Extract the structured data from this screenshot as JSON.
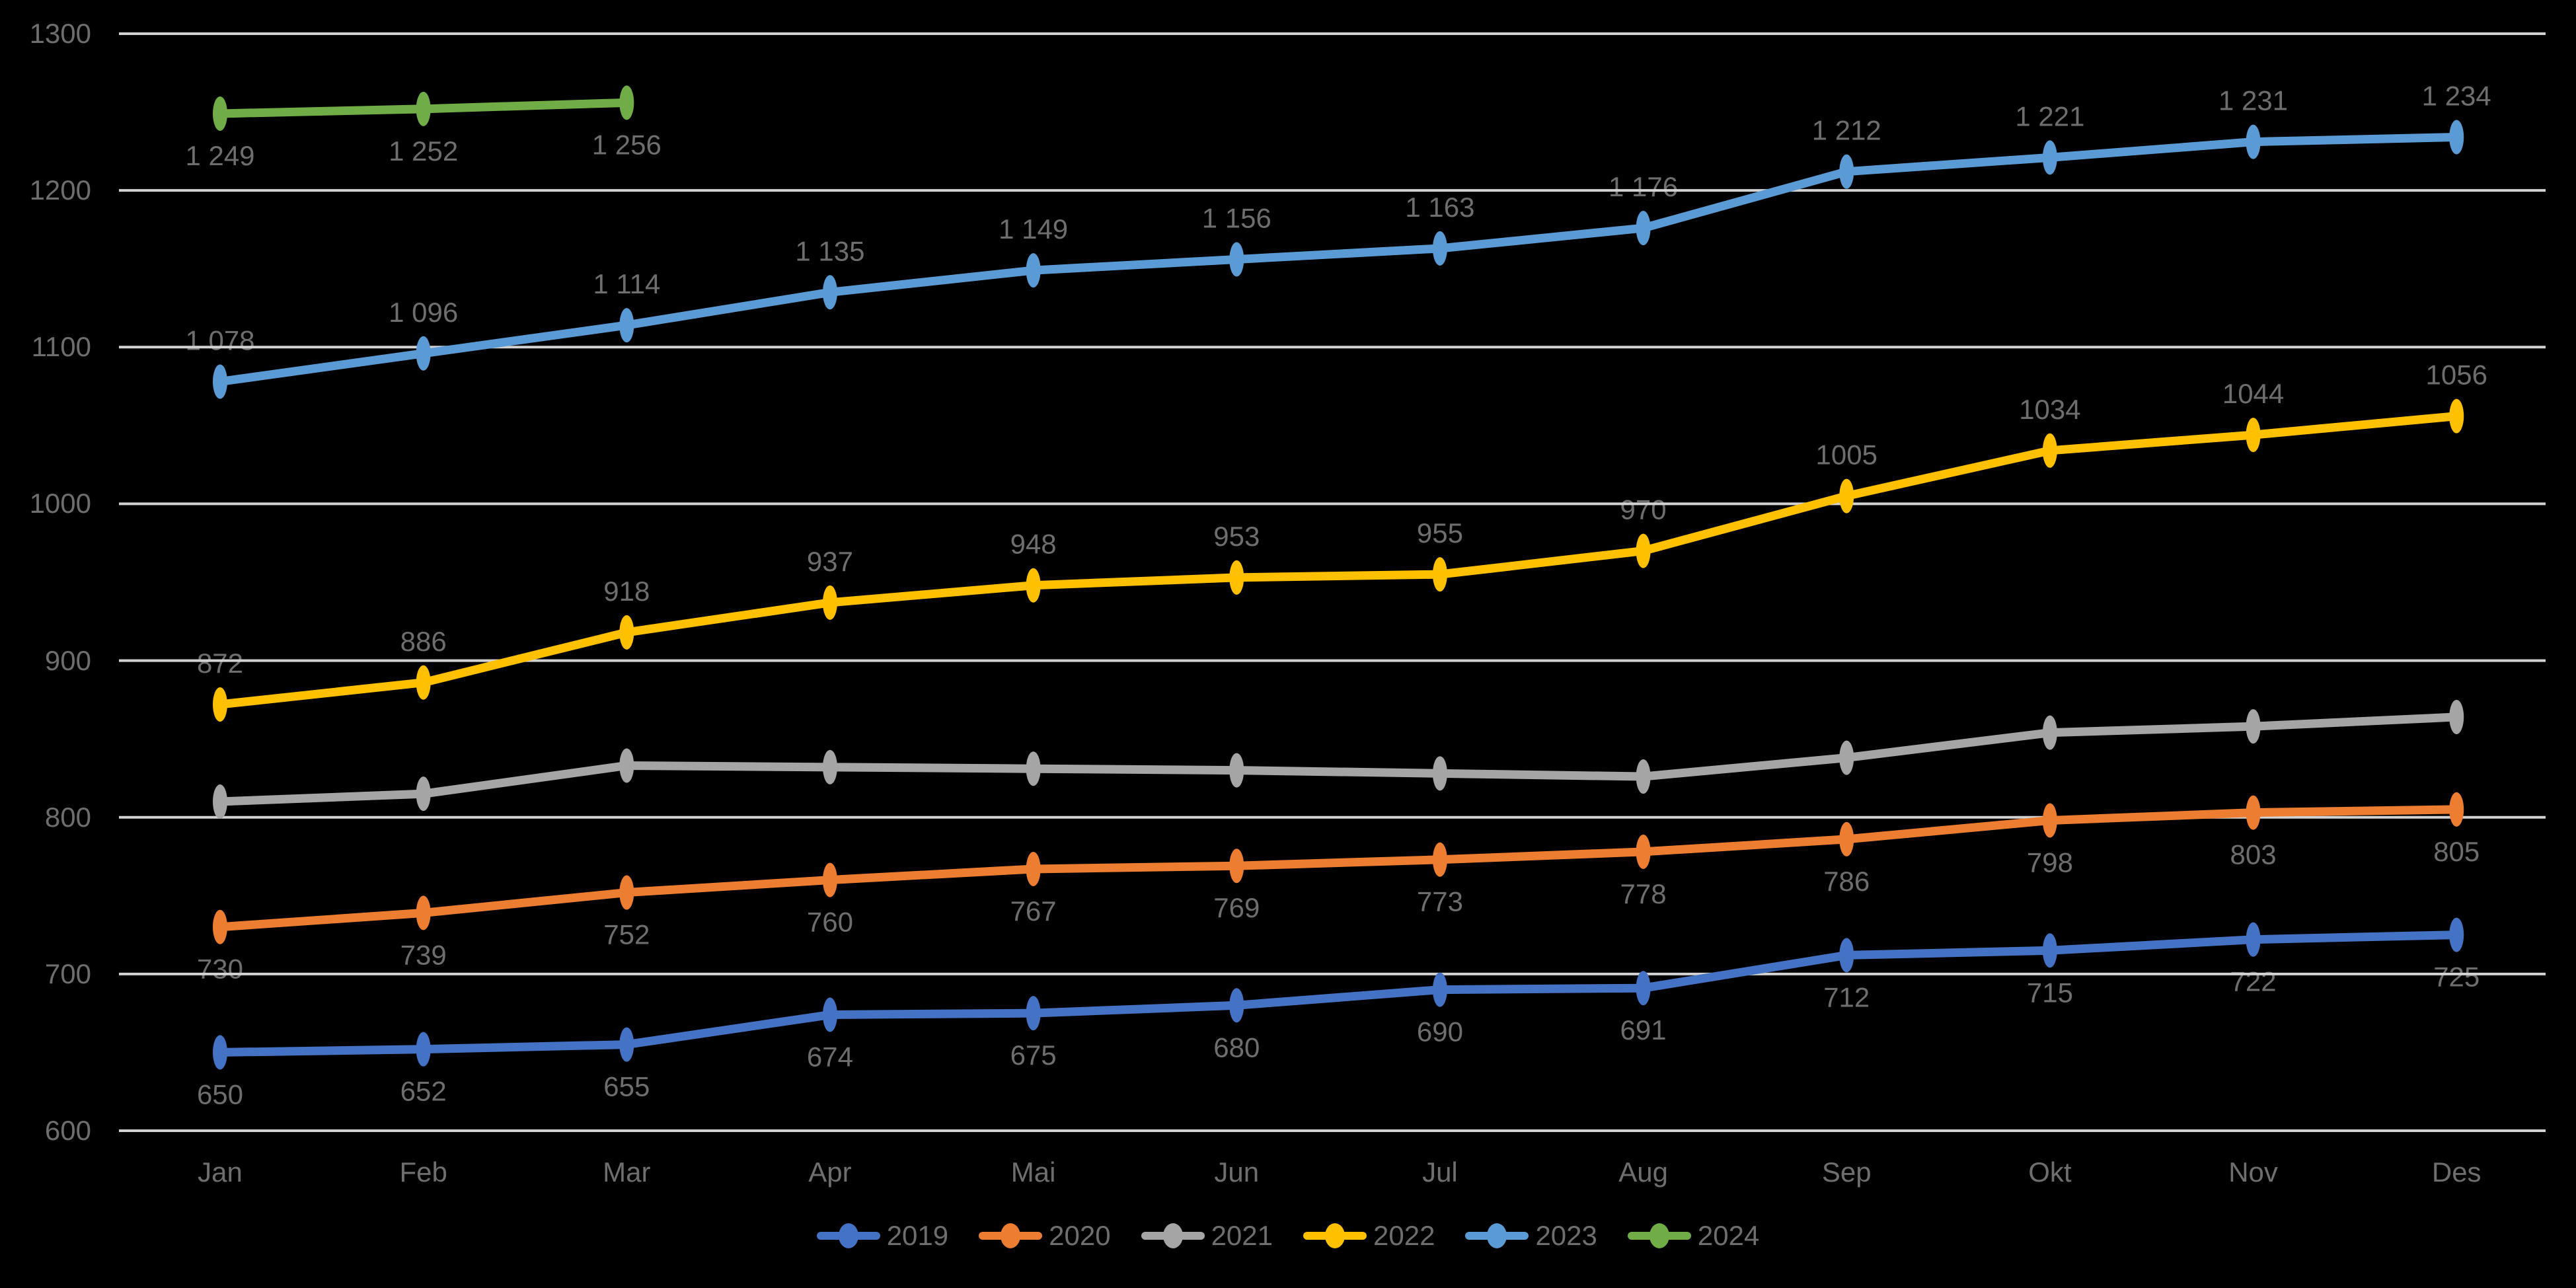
{
  "chart_data": {
    "type": "line",
    "title": "",
    "categories": [
      "Jan",
      "Feb",
      "Mar",
      "Apr",
      "Mai",
      "Jun",
      "Jul",
      "Aug",
      "Sep",
      "Okt",
      "Nov",
      "Des"
    ],
    "y_axis": {
      "min": 600,
      "max": 1300,
      "step": 100,
      "ticks": [
        "1300",
        "1200",
        "1100",
        "1000",
        "900",
        "800",
        "700",
        "600"
      ]
    },
    "grid": true,
    "gridline_color": "#D2D2D2",
    "background": "#000000",
    "text_color": "#6E6E6E",
    "legend_position": "bottom",
    "series": [
      {
        "name": "2019",
        "color": "#4472C4",
        "label_position": "below",
        "values": [
          650,
          652,
          655,
          674,
          675,
          680,
          690,
          691,
          712,
          715,
          722,
          725
        ],
        "labels": [
          "650",
          "652",
          "655",
          "674",
          "675",
          "680",
          "690",
          "691",
          "712",
          "715",
          "722",
          "725"
        ]
      },
      {
        "name": "2020",
        "color": "#ED7D31",
        "label_position": "below",
        "values": [
          730,
          739,
          752,
          760,
          767,
          769,
          773,
          778,
          786,
          798,
          803,
          805
        ],
        "labels": [
          "730",
          "739",
          "752",
          "760",
          "767",
          "769",
          "773",
          "778",
          "786",
          "798",
          "803",
          "805"
        ]
      },
      {
        "name": "2021",
        "color": "#A5A5A5",
        "label_position": "none",
        "values": [
          810,
          815,
          833,
          832,
          831,
          830,
          828,
          826,
          838,
          854,
          858,
          864
        ],
        "labels": []
      },
      {
        "name": "2022",
        "color": "#FFC000",
        "label_position": "above",
        "values": [
          872,
          886,
          918,
          937,
          948,
          953,
          955,
          970,
          1005,
          1034,
          1044,
          1056
        ],
        "labels": [
          "872",
          "886",
          "918",
          "937",
          "948",
          "953",
          "955",
          "970",
          "1005",
          "1034",
          "1044",
          "1056"
        ]
      },
      {
        "name": "2023",
        "color": "#5B9BD5",
        "label_position": "above",
        "values": [
          1078,
          1096,
          1114,
          1135,
          1149,
          1156,
          1163,
          1176,
          1212,
          1221,
          1231,
          1234
        ],
        "labels": [
          "1 078",
          "1 096",
          "1 114",
          "1 135",
          "1 149",
          "1 156",
          "1 163",
          "1 176",
          "1 212",
          "1 221",
          "1 231",
          "1 234"
        ]
      },
      {
        "name": "2024",
        "color": "#70AD47",
        "label_position": "below",
        "values": [
          1249,
          1252,
          1256
        ],
        "labels": [
          "1 249",
          "1 252",
          "1 256"
        ]
      }
    ]
  }
}
